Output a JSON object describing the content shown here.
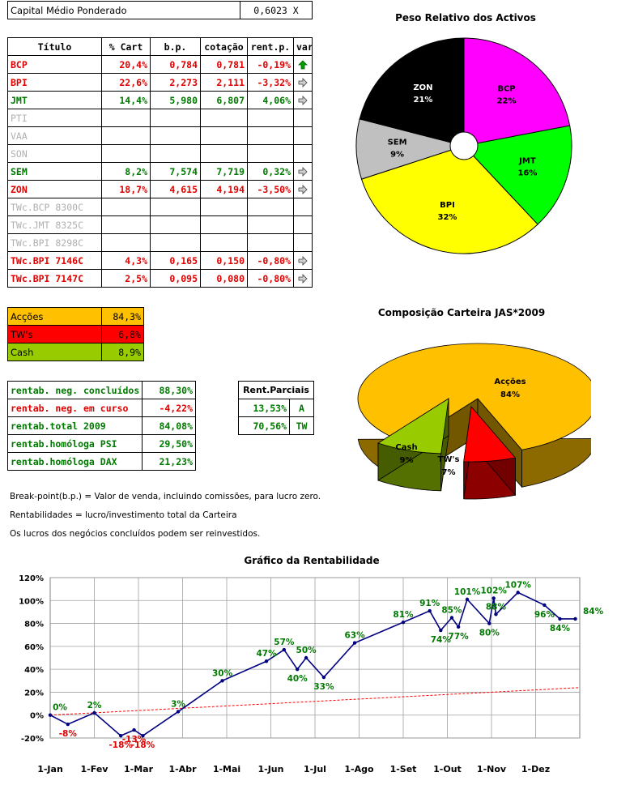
{
  "header": {
    "label": "Capital Médio Ponderado",
    "value": "0,6023 X"
  },
  "positions": {
    "columns": [
      "Título",
      "% Cart",
      "b.p.",
      "cotação",
      "rent.p.",
      "var."
    ],
    "rows": [
      {
        "name": "BCP",
        "pct": "20,4%",
        "bp": "0,784",
        "cot": "0,781",
        "rent": "-0,19%",
        "var": "up",
        "style": "red"
      },
      {
        "name": "BPI",
        "pct": "22,6%",
        "bp": "2,273",
        "cot": "2,111",
        "rent": "-3,32%",
        "var": "right",
        "style": "red"
      },
      {
        "name": "JMT",
        "pct": "14,4%",
        "bp": "5,980",
        "cot": "6,807",
        "rent": "4,06%",
        "var": "right",
        "style": "green"
      },
      {
        "name": "PTI",
        "pct": "",
        "bp": "",
        "cot": "",
        "rent": "",
        "var": "",
        "style": "grey"
      },
      {
        "name": "VAA",
        "pct": "",
        "bp": "",
        "cot": "",
        "rent": "",
        "var": "",
        "style": "grey"
      },
      {
        "name": "SON",
        "pct": "",
        "bp": "",
        "cot": "",
        "rent": "",
        "var": "",
        "style": "grey"
      },
      {
        "name": "SEM",
        "pct": "8,2%",
        "bp": "7,574",
        "cot": "7,719",
        "rent": "0,32%",
        "var": "right",
        "style": "green"
      },
      {
        "name": "ZON",
        "pct": "18,7%",
        "bp": "4,615",
        "cot": "4,194",
        "rent": "-3,50%",
        "var": "right",
        "style": "red"
      },
      {
        "name": "TWc.BCP 8300C",
        "pct": "",
        "bp": "",
        "cot": "",
        "rent": "",
        "var": "",
        "style": "grey"
      },
      {
        "name": "TWc.JMT 8325C",
        "pct": "",
        "bp": "",
        "cot": "",
        "rent": "",
        "var": "",
        "style": "grey"
      },
      {
        "name": "TWc.BPI 8298C",
        "pct": "",
        "bp": "",
        "cot": "",
        "rent": "",
        "var": "",
        "style": "grey"
      },
      {
        "name": "TWc.BPI 7146C",
        "pct": "4,3%",
        "bp": "0,165",
        "cot": "0,150",
        "rent": "-0,80%",
        "var": "right",
        "style": "red"
      },
      {
        "name": "TWc.BPI 7147C",
        "pct": "2,5%",
        "bp": "0,095",
        "cot": "0,080",
        "rent": "-0,80%",
        "var": "right",
        "style": "red"
      }
    ]
  },
  "allocation": [
    {
      "label": "Acções",
      "value": "84,3%",
      "color": "#ffc000"
    },
    {
      "label": "TW's",
      "value": "6,8%",
      "color": "#ff0000"
    },
    {
      "label": "Cash",
      "value": "8,9%",
      "color": "#99cc00"
    }
  ],
  "returns": [
    {
      "label": "rentab. neg. concluídos",
      "value": "88,30%",
      "style": "green"
    },
    {
      "label": "rentab. neg. em curso",
      "value": "-4,22%",
      "style": "red"
    },
    {
      "label": "rentab.total 2009",
      "value": "84,08%",
      "style": "green"
    },
    {
      "label": "rentab.homóloga PSI",
      "value": "29,50%",
      "style": "green"
    },
    {
      "label": "rentab.homóloga DAX",
      "value": "21,23%",
      "style": "green"
    }
  ],
  "partial": {
    "title": "Rent.Parciais",
    "rows": [
      {
        "value": "13,53%",
        "tag": "A"
      },
      {
        "value": "70,56%",
        "tag": "TW"
      }
    ]
  },
  "notes": [
    "Break-point(b.p.) = Valor de venda, incluindo comissões, para lucro zero.",
    "Rentabilidades = lucro/investimento total da Carteira",
    "Os lucros dos negócios concluídos podem ser reinvestidos."
  ],
  "chart_data": [
    {
      "type": "pie",
      "title": "Peso Relativo dos Activos",
      "slices": [
        {
          "label": "BCP",
          "value": 22,
          "text": "22%",
          "color": "#ff00ff"
        },
        {
          "label": "JMT",
          "value": 16,
          "text": "16%",
          "color": "#00ff00"
        },
        {
          "label": "BPI",
          "value": 32,
          "text": "32%",
          "color": "#ffff00"
        },
        {
          "label": "SEM",
          "value": 9,
          "text": "9%",
          "color": "#c0c0c0"
        },
        {
          "label": "ZON",
          "value": 21,
          "text": "21%",
          "color": "#000000"
        }
      ]
    },
    {
      "type": "pie",
      "title": "Composição Carteira JAS*2009",
      "slices": [
        {
          "label": "Acções",
          "value": 84,
          "text": "84%",
          "color": "#ffc000"
        },
        {
          "label": "TW's",
          "value": 7,
          "text": "7%",
          "color": "#ff0000"
        },
        {
          "label": "Cash",
          "value": 9,
          "text": "9%",
          "color": "#99cc00"
        }
      ]
    },
    {
      "type": "line",
      "title": "Gráfico da Rentabilidade",
      "ylim": [
        -20,
        120
      ],
      "yticks": [
        "-20%",
        "0%",
        "20%",
        "40%",
        "60%",
        "80%",
        "100%",
        "120%"
      ],
      "xlabels": [
        "1-Jan",
        "1-Fev",
        "1-Mar",
        "1-Abr",
        "1-Mai",
        "1-Jun",
        "1-Jul",
        "1-Ago",
        "1-Set",
        "1-Out",
        "1-Nov",
        "1-Dez"
      ],
      "series": [
        {
          "color": "#000080",
          "points": [
            [
              0,
              0,
              "0%",
              "green"
            ],
            [
              0.4,
              -8,
              "-8%",
              "red"
            ],
            [
              1,
              2,
              "2%",
              "green"
            ],
            [
              1.6,
              -18,
              "-18%",
              "red"
            ],
            [
              1.9,
              -13,
              "-13%",
              "red"
            ],
            [
              2.1,
              -18,
              "-18%",
              "red"
            ],
            [
              2.9,
              3,
              "3%",
              "green"
            ],
            [
              3.9,
              30,
              "30%",
              "green"
            ],
            [
              4.9,
              47,
              "47%",
              "green"
            ],
            [
              5.3,
              57,
              "57%",
              "green"
            ],
            [
              5.6,
              40,
              "40%",
              "green"
            ],
            [
              5.8,
              50,
              "50%",
              "green"
            ],
            [
              6.2,
              33,
              "33%",
              "green"
            ],
            [
              6.9,
              63,
              "63%",
              "green"
            ],
            [
              8.0,
              81,
              "81%",
              "green"
            ],
            [
              8.6,
              91,
              "91%",
              "green"
            ],
            [
              8.85,
              74,
              "74%",
              "green"
            ],
            [
              9.1,
              85,
              "85%",
              "green"
            ],
            [
              9.25,
              77,
              "77%",
              "green"
            ],
            [
              9.45,
              101,
              "101%",
              "green"
            ],
            [
              9.95,
              80,
              "80%",
              "green"
            ],
            [
              10.05,
              102,
              "102%",
              "green"
            ],
            [
              10.1,
              88,
              "88%",
              "green"
            ],
            [
              10.6,
              107,
              "107%",
              "green"
            ],
            [
              11.2,
              96,
              "96%",
              "green"
            ],
            [
              11.55,
              84,
              "84%",
              "green"
            ],
            [
              11.9,
              84,
              "84%",
              "green"
            ]
          ]
        },
        {
          "color": "#ff0000",
          "dashed": true,
          "points": [
            [
              0,
              0
            ],
            [
              12,
              24
            ]
          ]
        }
      ]
    }
  ]
}
